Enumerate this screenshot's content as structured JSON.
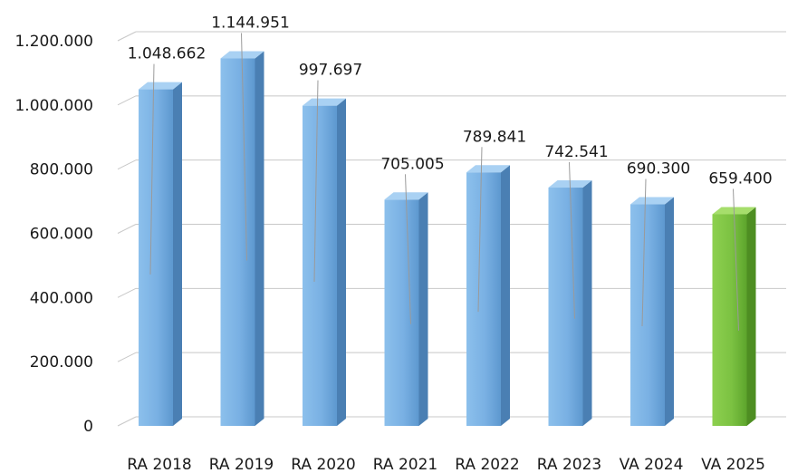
{
  "chart_data": {
    "type": "bar",
    "categories": [
      "RA 2018",
      "RA 2019",
      "RA 2020",
      "RA 2021",
      "RA 2022",
      "RA 2023",
      "VA 2024",
      "VA 2025"
    ],
    "values": [
      1048662,
      1144951,
      997697,
      705005,
      789841,
      742541,
      690300,
      659400
    ],
    "value_labels": [
      "1.048.662",
      "1.144.951",
      "997.697",
      "705.005",
      "789.841",
      "742.541",
      "690.300",
      "659.400"
    ],
    "y_ticks": [
      0,
      200000,
      400000,
      600000,
      800000,
      1000000,
      1200000
    ],
    "y_tick_labels": [
      "0",
      "200.000",
      "400.000",
      "600.000",
      "800.000",
      "1.000.000",
      "1.200.000"
    ],
    "ylim": [
      0,
      1200000
    ],
    "grid": true,
    "style": "3d-column",
    "colors": {
      "bar": "#7fb5e6",
      "highlight": "#7cc242",
      "highlight_category": "VA 2025",
      "gridline": "#c8c8c8"
    }
  }
}
